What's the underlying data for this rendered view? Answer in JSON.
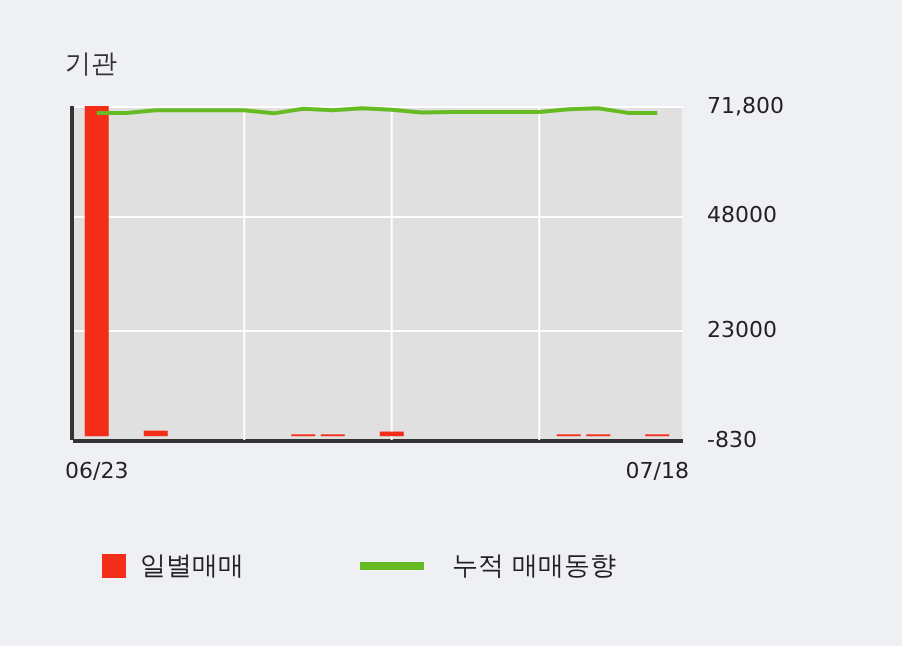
{
  "chart_data": {
    "type": "bar",
    "title": "기관",
    "categories": [
      "06/23",
      null,
      null,
      null,
      null,
      null,
      null,
      null,
      null,
      null,
      null,
      null,
      null,
      null,
      null,
      null,
      null,
      null,
      null,
      "07/18"
    ],
    "series": [
      {
        "name": "일별매매",
        "color": "#f32d17",
        "values": [
          71800,
          0,
          1200,
          0,
          0,
          0,
          0,
          400,
          400,
          0,
          1000,
          0,
          0,
          0,
          0,
          0,
          400,
          400,
          0,
          400
        ]
      },
      {
        "name": "누적 매매동향",
        "type": "line",
        "color": "#66bb22",
        "values": [
          70300,
          70300,
          70900,
          70900,
          70900,
          70900,
          70200,
          71200,
          70900,
          71300,
          71000,
          70400,
          70500,
          70500,
          70500,
          70500,
          71100,
          71300,
          70300,
          70300
        ]
      }
    ],
    "ylim": [
      -830,
      71800
    ],
    "yticks": [
      {
        "value": 71800,
        "label": "71,800"
      },
      48000,
      23000,
      -830
    ],
    "grid": true,
    "legend": "bottom"
  }
}
